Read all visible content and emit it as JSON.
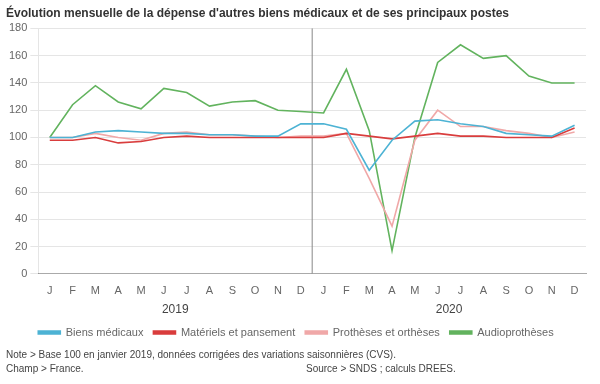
{
  "chart_data": {
    "type": "line",
    "title": "Évolution mensuelle de la dépense d'autres biens médicaux et de ses principaux postes",
    "categories": [
      "J",
      "F",
      "M",
      "A",
      "M",
      "J",
      "J",
      "A",
      "S",
      "O",
      "N",
      "D",
      "J",
      "F",
      "M",
      "A",
      "M",
      "J",
      "J",
      "A",
      "S",
      "O",
      "N",
      "D"
    ],
    "series": [
      {
        "name": "Biens médicaux",
        "color": "#4db3d4",
        "values": [
          100,
          100,
          104,
          105,
          104,
          103,
          103,
          102,
          102,
          101,
          101,
          110,
          110,
          106,
          76,
          98,
          112,
          113,
          110,
          108,
          103,
          102,
          101,
          109
        ]
      },
      {
        "name": "Matériels et pansement",
        "color": "#d93d3d",
        "values": [
          98,
          98,
          100,
          96,
          97,
          100,
          101,
          100,
          100,
          100,
          100,
          100,
          100,
          103,
          101,
          99,
          101,
          103,
          101,
          101,
          100,
          100,
          100,
          107
        ]
      },
      {
        "name": "Prothèses et orthèses",
        "color": "#f0a8a8",
        "values": [
          100,
          100,
          103,
          100,
          98,
          103,
          104,
          102,
          102,
          101,
          100,
          101,
          101,
          103,
          70,
          35,
          98,
          120,
          108,
          108,
          105,
          103,
          100,
          104
        ]
      },
      {
        "name": "Audioprothèses",
        "color": "#62b35e",
        "values": [
          100,
          124,
          138,
          126,
          121,
          136,
          133,
          123,
          126,
          127,
          120,
          119,
          118,
          150,
          105,
          17,
          100,
          155,
          168,
          158,
          160,
          145,
          140,
          140
        ]
      }
    ],
    "ylim": [
      0,
      180
    ],
    "yticks": [
      0,
      20,
      40,
      60,
      80,
      100,
      120,
      140,
      160,
      180
    ],
    "grid": true,
    "legend": "bottom",
    "year_groups": [
      {
        "label": "2019",
        "start": 0
      },
      {
        "label": "2020",
        "start": 12
      }
    ],
    "notes": [
      [
        "Note > Base 100 en janvier 2019, données corrigées des variations saisonnières (CVS)."
      ],
      [
        "Champ > France.",
        "Source > SNDS ; calculs DREES."
      ]
    ]
  }
}
